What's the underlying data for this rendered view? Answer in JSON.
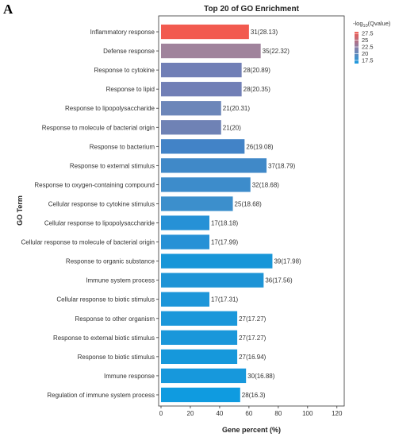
{
  "panel_letter": "A",
  "chart_data": {
    "type": "bar",
    "orientation": "horizontal",
    "title": "Top 20 of GO Enrichment",
    "xlabel": "Gene percent (%)",
    "ylabel": "GO Term",
    "xlim": [
      0,
      125
    ],
    "xticks": [
      0,
      20,
      40,
      60,
      80,
      100,
      120
    ],
    "categories": [
      "Inflammatory response",
      "Defense response",
      "Response to cytokine",
      "Response to lipid",
      "Response to lipopolysaccharide",
      "Response to molecule of bacterial origin",
      "Response to bacterium",
      "Response to external stimulus",
      "Response to oxygen-containing compound",
      "Cellular response to cytokine stimulus",
      "Cellular response to lipopolysaccharide",
      "Cellular response to molecule of bacterial origin",
      "Response to organic substance",
      "Immune system process",
      "Cellular response to biotic stimulus",
      "Response to other organism",
      "Response to external biotic stimulus",
      "Response to biotic stimulus",
      "Immune response",
      "Regulation of immune system process"
    ],
    "values": [
      60,
      68,
      55,
      55,
      41,
      41,
      57,
      72,
      61,
      49,
      33,
      33,
      76,
      70,
      33,
      52,
      52,
      52,
      58,
      54
    ],
    "labels": [
      "31(28.13)",
      "35(22.32)",
      "28(20.89)",
      "28(20.35)",
      "21(20.31)",
      "21(20)",
      "26(19.08)",
      "37(18.79)",
      "32(18.68)",
      "25(18.68)",
      "17(18.18)",
      "17(17.99)",
      "39(17.98)",
      "36(17.56)",
      "17(17.31)",
      "27(17.27)",
      "27(17.27)",
      "27(16.94)",
      "30(16.88)",
      "28(16.3)"
    ],
    "colors": [
      "#f25a4f",
      "#a0839c",
      "#717fb6",
      "#717fb6",
      "#6c86b9",
      "#6f82b5",
      "#4283c7",
      "#4089c8",
      "#3d8ccb",
      "#3c8fcc",
      "#2691d6",
      "#2791d6",
      "#1896d8",
      "#1e94d6",
      "#1d96d9",
      "#1a97da",
      "#1a97da",
      "#1698db",
      "#1798dc",
      "#0f9be0"
    ],
    "legend": {
      "title_prefix": "-log",
      "title_sub": "10",
      "title_suffix": "(Qvalue)",
      "position": "top-right",
      "range": [
        16.3,
        28.13
      ],
      "ticks": [
        "27.5",
        "25",
        "22.5",
        "20",
        "17.5"
      ],
      "tick_values": [
        27.5,
        25,
        22.5,
        20,
        17.5
      ],
      "color_high": "#f25a4f",
      "color_low": "#1a9be0"
    }
  }
}
